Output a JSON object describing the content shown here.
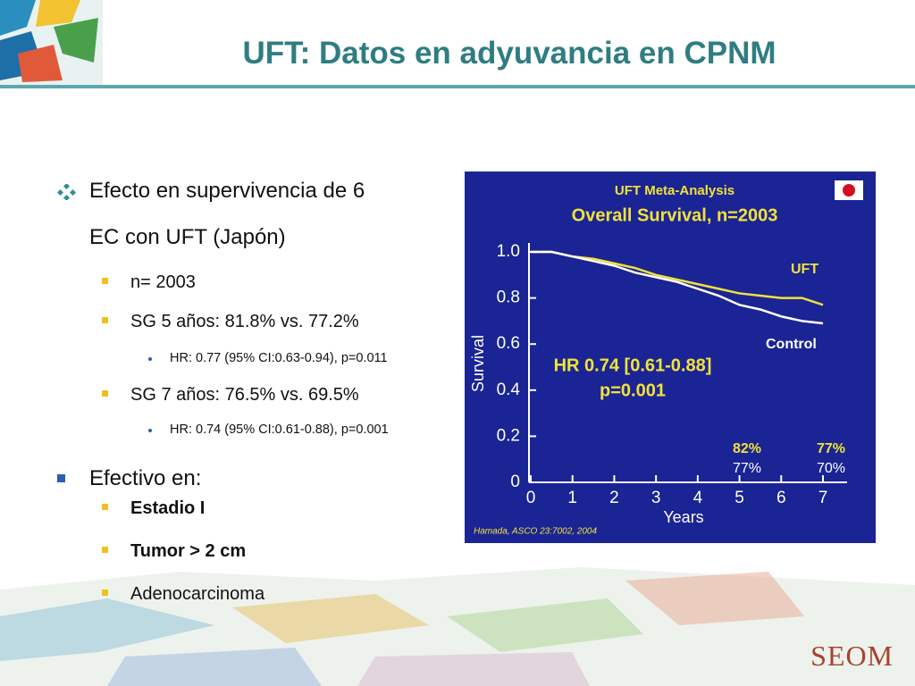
{
  "header": {
    "title": "UFT: Datos en adyuvancia en CPNM"
  },
  "bullets": [
    {
      "text": "Efecto en supervivencia de 6 EC con UFT (Japón)",
      "level": 0,
      "marker": "diamond",
      "bold": false
    },
    {
      "text": "n= 2003",
      "level": 1,
      "marker": "square",
      "bold": false
    },
    {
      "text": "SG 5 años: 81.8% vs. 77.2%",
      "level": 1,
      "marker": "square",
      "bold": false
    },
    {
      "text": "HR: 0.77 (95% CI:0.63-0.94), p=0.011",
      "level": 2,
      "marker": "dot",
      "bold": false
    },
    {
      "text": "SG 7 años: 76.5% vs. 69.5%",
      "level": 1,
      "marker": "square",
      "bold": false
    },
    {
      "text": "HR: 0.74 (95% CI:0.61-0.88), p=0.001",
      "level": 2,
      "marker": "dot",
      "bold": false
    },
    {
      "text": "Efectivo en:",
      "level": 0,
      "marker": "square",
      "bold": false
    },
    {
      "text": "Estadio I",
      "level": 1,
      "marker": "square",
      "bold": true
    },
    {
      "text": "Tumor > 2 cm",
      "level": 1,
      "marker": "square",
      "bold": true
    },
    {
      "text": "Adenocarcinoma",
      "level": 1,
      "marker": "square",
      "bold": false
    }
  ],
  "chart": {
    "type": "line",
    "title": "UFT Meta-Analysis",
    "subtitle": "Overall Survival, n=2003",
    "y_label": "Survival",
    "x_label": "Years",
    "x": [
      0,
      0.5,
      1,
      1.5,
      2,
      2.5,
      3,
      3.5,
      4,
      4.5,
      5,
      5.5,
      6,
      6.5,
      7
    ],
    "series": [
      {
        "name": "UFT",
        "color": "#f2e23a",
        "values": [
          1,
          1,
          0.98,
          0.97,
          0.95,
          0.93,
          0.9,
          0.88,
          0.86,
          0.84,
          0.82,
          0.81,
          0.8,
          0.8,
          0.77
        ]
      },
      {
        "name": "Control",
        "color": "#ffffff",
        "values": [
          1,
          1,
          0.98,
          0.96,
          0.94,
          0.91,
          0.89,
          0.87,
          0.84,
          0.81,
          0.77,
          0.75,
          0.72,
          0.7,
          0.69
        ]
      }
    ],
    "xlim": [
      0,
      7
    ],
    "xticks": [
      0,
      1,
      2,
      3,
      4,
      5,
      6,
      7
    ],
    "ylim": [
      0,
      1
    ],
    "yticks": [
      0,
      0.2,
      0.4,
      0.6,
      0.8,
      {
        "value": 1,
        "label": "1.0"
      }
    ],
    "annotations": [
      "HR 0.74 [0.61-0.88]",
      "p=0.001"
    ],
    "rates": [
      {
        "uft": "82%",
        "control": "77%"
      },
      {
        "uft": "77%",
        "control": "70%"
      }
    ],
    "source": "Hamada, ASCO 23:7002, 2004"
  },
  "footer": {
    "logo": "SEOM"
  }
}
